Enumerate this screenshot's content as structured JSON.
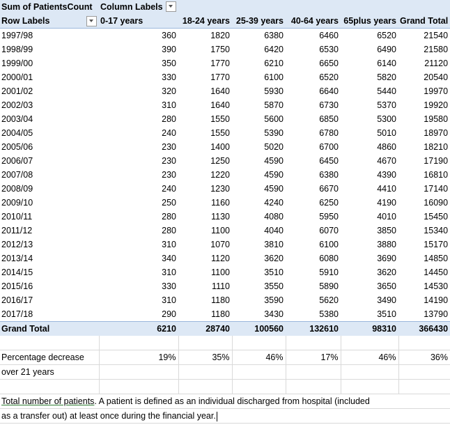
{
  "pivot": {
    "value_field": "Sum of PatientsCount",
    "column_labels": "Column Labels",
    "row_labels": "Row Labels",
    "columns": [
      "0-17 years",
      "18-24 years",
      "25-39 years",
      "40-64 years",
      "65plus years",
      "Grand Total"
    ],
    "rows": [
      {
        "label": "1997/98",
        "values": [
          "360",
          "1820",
          "6380",
          "6460",
          "6520",
          "21540"
        ]
      },
      {
        "label": "1998/99",
        "values": [
          "390",
          "1750",
          "6420",
          "6530",
          "6490",
          "21580"
        ]
      },
      {
        "label": "1999/00",
        "values": [
          "350",
          "1770",
          "6210",
          "6650",
          "6140",
          "21120"
        ]
      },
      {
        "label": "2000/01",
        "values": [
          "330",
          "1770",
          "6100",
          "6520",
          "5820",
          "20540"
        ]
      },
      {
        "label": "2001/02",
        "values": [
          "320",
          "1640",
          "5930",
          "6640",
          "5440",
          "19970"
        ]
      },
      {
        "label": "2002/03",
        "values": [
          "310",
          "1640",
          "5870",
          "6730",
          "5370",
          "19920"
        ]
      },
      {
        "label": "2003/04",
        "values": [
          "280",
          "1550",
          "5600",
          "6850",
          "5300",
          "19580"
        ]
      },
      {
        "label": "2004/05",
        "values": [
          "240",
          "1550",
          "5390",
          "6780",
          "5010",
          "18970"
        ]
      },
      {
        "label": "2005/06",
        "values": [
          "230",
          "1400",
          "5020",
          "6700",
          "4860",
          "18210"
        ]
      },
      {
        "label": "2006/07",
        "values": [
          "230",
          "1250",
          "4590",
          "6450",
          "4670",
          "17190"
        ]
      },
      {
        "label": "2007/08",
        "values": [
          "230",
          "1220",
          "4590",
          "6380",
          "4390",
          "16810"
        ]
      },
      {
        "label": "2008/09",
        "values": [
          "240",
          "1230",
          "4590",
          "6670",
          "4410",
          "17140"
        ]
      },
      {
        "label": "2009/10",
        "values": [
          "250",
          "1160",
          "4240",
          "6250",
          "4190",
          "16090"
        ]
      },
      {
        "label": "2010/11",
        "values": [
          "280",
          "1130",
          "4080",
          "5950",
          "4010",
          "15450"
        ]
      },
      {
        "label": "2011/12",
        "values": [
          "280",
          "1100",
          "4040",
          "6070",
          "3850",
          "15340"
        ]
      },
      {
        "label": "2012/13",
        "values": [
          "310",
          "1070",
          "3810",
          "6100",
          "3880",
          "15170"
        ]
      },
      {
        "label": "2013/14",
        "values": [
          "340",
          "1120",
          "3620",
          "6080",
          "3690",
          "14850"
        ]
      },
      {
        "label": "2014/15",
        "values": [
          "310",
          "1100",
          "3510",
          "5910",
          "3620",
          "14450"
        ]
      },
      {
        "label": "2015/16",
        "values": [
          "330",
          "1110",
          "3550",
          "5890",
          "3650",
          "14530"
        ]
      },
      {
        "label": "2016/17",
        "values": [
          "310",
          "1180",
          "3590",
          "5620",
          "3490",
          "14190"
        ]
      },
      {
        "label": "2017/18",
        "values": [
          "290",
          "1180",
          "3430",
          "5380",
          "3510",
          "13790"
        ]
      }
    ],
    "grand_total": {
      "label": "Grand Total",
      "values": [
        "6210",
        "28740",
        "100560",
        "132610",
        "98310",
        "366430"
      ]
    }
  },
  "percentage": {
    "label_line1": "Percentage decrease",
    "label_line2": "over 21 years",
    "values": [
      "19%",
      "35%",
      "46%",
      "17%",
      "46%",
      "36%"
    ]
  },
  "note": {
    "underlined": "Total number of patients",
    "text_line1_rest": ". A patient is defined as an individual discharged from hospital (included",
    "text_line2": "as a transfer out) at least once during the financial year."
  },
  "icons": {
    "filter_dropdown": "dropdown-arrow-icon"
  }
}
